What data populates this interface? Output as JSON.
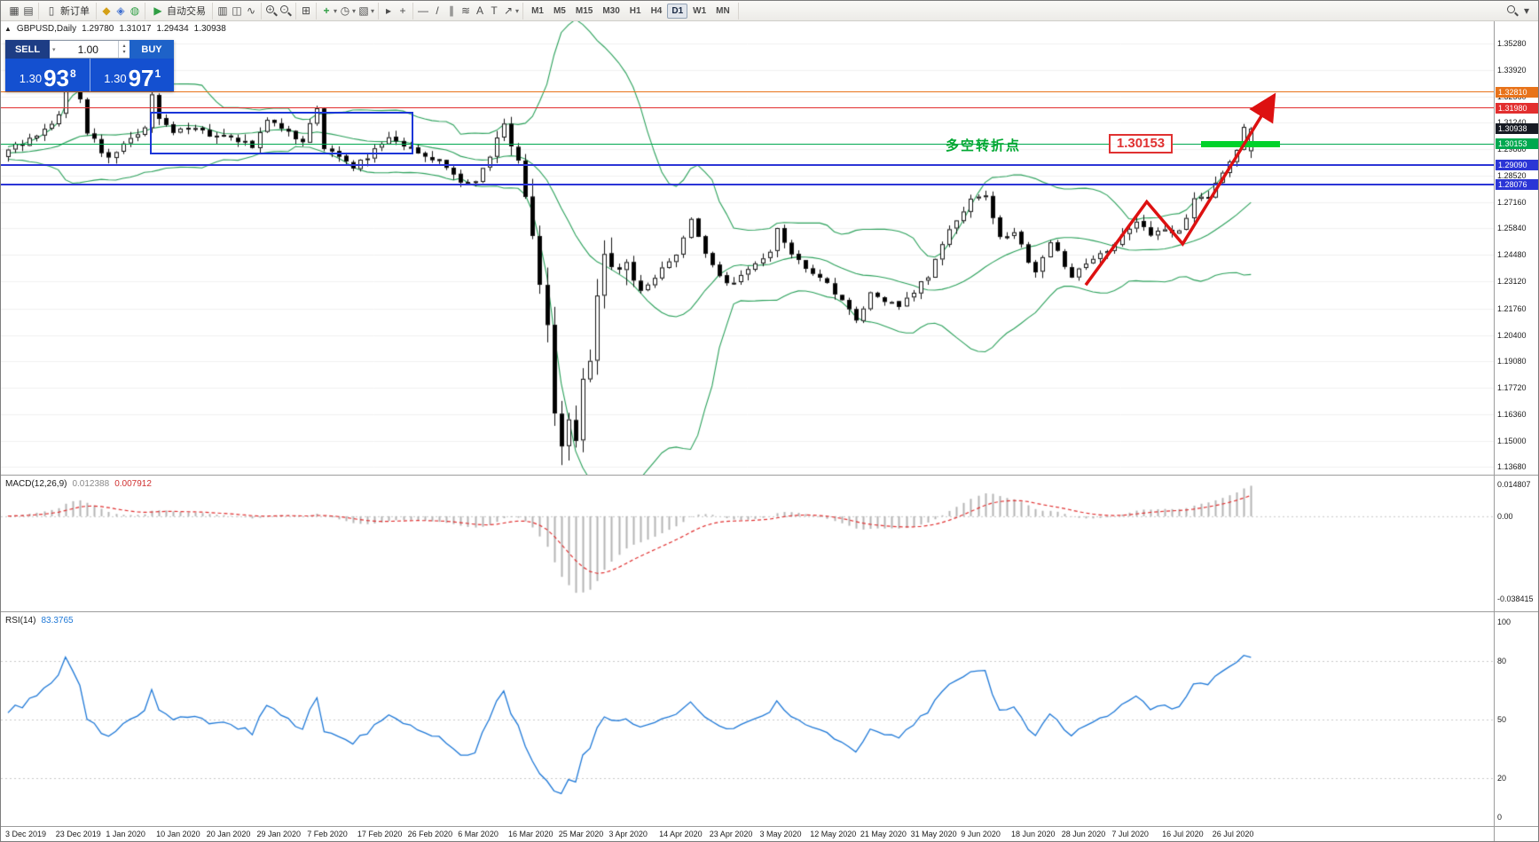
{
  "toolbar": {
    "caret_glyph": "▾",
    "new_order_label": "新订单",
    "autotrading_label": "自动交易",
    "groups": [
      {
        "items": [
          {
            "name": "new-chart-icon",
            "glyph": "▦"
          },
          {
            "name": "chart-profiles-icon",
            "glyph": "▤"
          }
        ]
      },
      {
        "items": [
          {
            "name": "new-order-button",
            "icon": "new-order-icon",
            "glyph": "▯",
            "label": "新订单"
          }
        ]
      },
      {
        "items": [
          {
            "name": "market-watch-icon",
            "glyph": "◆",
            "color": "#d4a017"
          },
          {
            "name": "data-window-icon",
            "glyph": "◈",
            "color": "#3f6fd0"
          },
          {
            "name": "navigator-icon",
            "glyph": "◍",
            "color": "#2f9e44"
          }
        ]
      },
      {
        "items": [
          {
            "name": "autotrading-button",
            "icon": "autotrading-icon",
            "glyph": "▶",
            "color": "#2f9e44",
            "label": "自动交易"
          }
        ]
      },
      {
        "items": [
          {
            "name": "bar-chart-icon",
            "glyph": "▥"
          },
          {
            "name": "candlestick-chart-icon",
            "glyph": "◫"
          },
          {
            "name": "line-chart-icon",
            "glyph": "∿"
          }
        ]
      },
      {
        "items": [
          {
            "name": "zoom-in-icon",
            "type": "mag",
            "sign": "+"
          },
          {
            "name": "zoom-out-icon",
            "type": "mag",
            "sign": "-"
          }
        ]
      },
      {
        "items": [
          {
            "name": "tile-windows-icon",
            "glyph": "⊞"
          }
        ]
      },
      {
        "items": [
          {
            "name": "indicators-icon",
            "glyph": "+",
            "color": "#2f9e44",
            "bold": true,
            "caret": true
          },
          {
            "name": "periods-icon",
            "glyph": "◷",
            "caret": true
          },
          {
            "name": "templates-icon",
            "glyph": "▧",
            "caret": true
          }
        ]
      },
      {
        "items": [
          {
            "name": "cursor-icon",
            "glyph": "▸"
          },
          {
            "name": "crosshair-icon",
            "glyph": "+"
          }
        ]
      },
      {
        "items": [
          {
            "name": "horizontal-line-icon",
            "glyph": "—"
          },
          {
            "name": "trendline-icon",
            "glyph": "/"
          },
          {
            "name": "channel-icon",
            "glyph": "∥"
          },
          {
            "name": "fibonacci-icon",
            "glyph": "≋"
          },
          {
            "name": "text-icon",
            "glyph": "A"
          },
          {
            "name": "label-icon",
            "glyph": "T"
          },
          {
            "name": "arrows-icon",
            "glyph": "↗",
            "caret": true
          }
        ]
      }
    ],
    "timeframes": [
      "M1",
      "M5",
      "M15",
      "M30",
      "H1",
      "H4",
      "D1",
      "W1",
      "MN"
    ],
    "active_timeframe": "D1",
    "right_items": [
      {
        "name": "search-icon",
        "type": "mag",
        "sign": ""
      },
      {
        "name": "toolbar-more-icon",
        "glyph": "▾"
      }
    ]
  },
  "chart_header": {
    "collapse_icon": "▲",
    "symbol": "GBPUSD,Daily",
    "open": "1.29780",
    "high": "1.31017",
    "low": "1.29434",
    "close": "1.30938"
  },
  "trade_panel": {
    "sell_label": "SELL",
    "buy_label": "BUY",
    "volume": "1.00",
    "dropdown_icon": "▾",
    "stepper_up": "▴",
    "stepper_down": "▾",
    "sell_price": {
      "prefix": "1.30",
      "big": "93",
      "sup": "8"
    },
    "buy_price": {
      "prefix": "1.30",
      "big": "97",
      "sup": "1"
    }
  },
  "chart_data": {
    "type": "candlestick",
    "symbol": "GBPUSD",
    "period": "Daily",
    "ohlc": {
      "open": "1.29780",
      "high": "1.31017",
      "low": "1.29434",
      "close": "1.30938"
    },
    "candle_count": 174,
    "candle_up_color": "#ffffff",
    "candle_down_color": "#000000",
    "price_axis_ticks": [
      "1.35280",
      "1.33920",
      "1.32560",
      "1.31240",
      "1.29880",
      "1.28520",
      "1.27160",
      "1.25840",
      "1.24480",
      "1.23120",
      "1.21760",
      "1.20400",
      "1.19080",
      "1.17720",
      "1.16360",
      "1.15000",
      "1.13680"
    ],
    "date_labels": [
      "3 Dec 2019",
      "23 Dec 2019",
      "1 Jan 2020",
      "10 Jan 2020",
      "20 Jan 2020",
      "29 Jan 2020",
      "7 Feb 2020",
      "17 Feb 2020",
      "26 Feb 2020",
      "6 Mar 2020",
      "16 Mar 2020",
      "25 Mar 2020",
      "3 Apr 2020",
      "14 Apr 2020",
      "23 Apr 2020",
      "3 May 2020",
      "12 May 2020",
      "21 May 2020",
      "31 May 2020",
      "9 Jun 2020",
      "18 Jun 2020",
      "28 Jun 2020",
      "7 Jul 2020",
      "16 Jul 2020",
      "26 Jul 2020"
    ],
    "indicators": {
      "bollinger": {
        "period": 20,
        "deviation": 2,
        "color": "#2aa05a"
      },
      "macd": {
        "label": "MACD(12,26,9)",
        "main_value": "0.012388",
        "signal_value": "0.007912",
        "axis_labels": [
          "0.014807",
          "0.00",
          "-0.038415"
        ],
        "histogram_color": "#b4b4b4",
        "signal_color": "#e03131"
      },
      "rsi": {
        "label": "RSI(14)",
        "value": "83.3765",
        "axis_labels": [
          "100",
          "80",
          "50",
          "20",
          "0"
        ],
        "levels": [
          80,
          50,
          20
        ],
        "line_color": "#1e78d7"
      }
    },
    "levels": [
      {
        "price": 1.3281,
        "label": "1.32810",
        "color": "#e8731a",
        "tag_bg": "#e8731a",
        "line_width": 1
      },
      {
        "price": 1.3198,
        "label": "1.31980",
        "color": "#e22e2e",
        "tag_bg": "#e22e2e",
        "line_width": 1
      },
      {
        "price": 1.30938,
        "label": "1.30938",
        "color": "#171b24",
        "tag_bg": "#171b24",
        "line_width": 0,
        "is_current": true
      },
      {
        "price": 1.30153,
        "label": "1.30153",
        "color": "#00a84f",
        "tag_bg": "#00a84f",
        "line_width": 1
      },
      {
        "price": 1.2909,
        "label": "1.29090",
        "color": "#2b35d6",
        "tag_bg": "#2b35d6",
        "line_width": 2
      },
      {
        "price": 1.28076,
        "label": "1.28076",
        "color": "#2b35d6",
        "tag_bg": "#2b35d6",
        "line_width": 2
      }
    ],
    "annotations": {
      "turning_point_text": {
        "text": "多空转折点",
        "color": "#00a832",
        "index": 130.5,
        "price": 1.3057
      },
      "price_flag": {
        "text": "1.30153",
        "color": "#e03131",
        "index": 153.2,
        "price": 1.30153
      },
      "rectangle": {
        "i1": 19.7,
        "i2": 56.4,
        "p1": 1.318,
        "p2": 1.296,
        "color": "#1a36d8"
      },
      "green_bar": {
        "i1": 166,
        "i2": 177,
        "price": 1.30153,
        "color": "#00d22a"
      },
      "arrow": {
        "color": "#dd1111",
        "points": [
          [
            150,
            1.2295
          ],
          [
            158.5,
            1.272
          ],
          [
            163.5,
            1.2505
          ],
          [
            176,
            1.325
          ]
        ]
      }
    },
    "price_path": [
      [
        0,
        1.299
      ],
      [
        4,
        1.305
      ],
      [
        7,
        1.316
      ],
      [
        8,
        1.333
      ],
      [
        10,
        1.325
      ],
      [
        11,
        1.308
      ],
      [
        14,
        1.2935
      ],
      [
        19,
        1.311
      ],
      [
        20,
        1.3257
      ],
      [
        21,
        1.314
      ],
      [
        23,
        1.308
      ],
      [
        26,
        1.31
      ],
      [
        28,
        1.306
      ],
      [
        31,
        1.304
      ],
      [
        34,
        1.3005
      ],
      [
        36,
        1.314
      ],
      [
        38,
        1.31
      ],
      [
        41,
        1.302
      ],
      [
        43,
        1.3205
      ],
      [
        44,
        1.2995
      ],
      [
        48,
        1.289
      ],
      [
        50,
        1.2955
      ],
      [
        53,
        1.3045
      ],
      [
        55,
        1.3
      ],
      [
        58,
        1.2965
      ],
      [
        61,
        1.2905
      ],
      [
        63,
        1.2823
      ],
      [
        65,
        1.281
      ],
      [
        67,
        1.295
      ],
      [
        68,
        1.305
      ],
      [
        69,
        1.3115
      ],
      [
        71,
        1.29
      ],
      [
        73,
        1.253
      ],
      [
        74,
        1.227
      ],
      [
        75,
        1.205
      ],
      [
        76,
        1.162
      ],
      [
        77,
        1.148
      ],
      [
        78,
        1.158
      ],
      [
        79,
        1.154
      ],
      [
        80,
        1.179
      ],
      [
        81,
        1.188
      ],
      [
        82,
        1.22
      ],
      [
        83,
        1.245
      ],
      [
        84,
        1.242
      ],
      [
        86,
        1.238
      ],
      [
        88,
        1.227
      ],
      [
        90,
        1.233
      ],
      [
        93,
        1.246
      ],
      [
        95,
        1.262
      ],
      [
        97,
        1.245
      ],
      [
        100,
        1.229
      ],
      [
        103,
        1.237
      ],
      [
        106,
        1.247
      ],
      [
        107,
        1.259
      ],
      [
        109,
        1.244
      ],
      [
        112,
        1.236
      ],
      [
        115,
        1.226
      ],
      [
        118,
        1.211
      ],
      [
        120,
        1.225
      ],
      [
        122,
        1.222
      ],
      [
        124,
        1.219
      ],
      [
        126,
        1.226
      ],
      [
        128,
        1.234
      ],
      [
        131,
        1.257
      ],
      [
        134,
        1.273
      ],
      [
        136,
        1.275
      ],
      [
        138,
        1.254
      ],
      [
        140,
        1.257
      ],
      [
        143,
        1.235
      ],
      [
        145,
        1.252
      ],
      [
        148,
        1.233
      ],
      [
        150,
        1.24
      ],
      [
        153,
        1.248
      ],
      [
        155,
        1.254
      ],
      [
        157,
        1.261
      ],
      [
        159,
        1.255
      ],
      [
        161,
        1.258
      ],
      [
        163,
        1.256
      ],
      [
        165,
        1.273
      ],
      [
        167,
        1.274
      ],
      [
        169,
        1.288
      ],
      [
        170,
        1.293
      ],
      [
        171,
        1.299
      ],
      [
        172,
        1.309
      ],
      [
        173,
        1.3094
      ]
    ]
  }
}
